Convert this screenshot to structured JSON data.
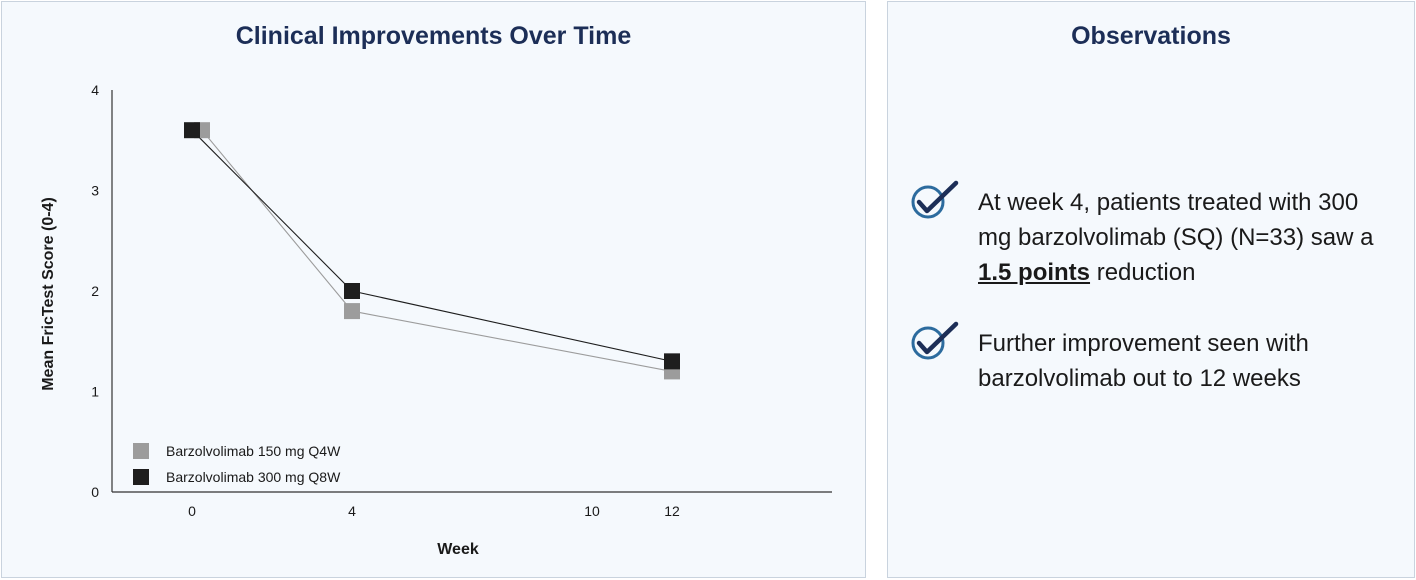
{
  "chart_data": {
    "type": "line",
    "title": "Clinical Improvements Over Time",
    "xlabel": "Week",
    "ylabel": "Mean FricTest Score (0-4)",
    "x_ticks": [
      0,
      4,
      10,
      12
    ],
    "y_ticks": [
      0,
      1,
      2,
      3,
      4
    ],
    "xlim": [
      -2,
      16
    ],
    "ylim": [
      0,
      4
    ],
    "grid": false,
    "legend_position": "bottom-left",
    "series": [
      {
        "name": "Barzolvolimab 150 mg Q4W",
        "color": "#9c9c9c",
        "points": [
          {
            "x": 0,
            "y": 3.6
          },
          {
            "x": 4,
            "y": 1.8
          },
          {
            "x": 12,
            "y": 1.2
          }
        ]
      },
      {
        "name": "Barzolvolimab 300 mg Q8W",
        "color": "#1e1e1e",
        "points": [
          {
            "x": 0,
            "y": 3.6
          },
          {
            "x": 4,
            "y": 2.0
          },
          {
            "x": 12,
            "y": 1.3
          }
        ]
      }
    ]
  },
  "observations": {
    "title": "Observations",
    "accent_color": "#2c6b9e",
    "items": [
      {
        "icon": "check-circle-icon",
        "pre": "At week 4, patients treated with 300 mg barzolvolimab (SQ) (N=33) saw a ",
        "bold": "1.5 points",
        "post": " reduction"
      },
      {
        "icon": "check-circle-icon",
        "pre": "Further improvement seen with barzolvolimab out to 12 weeks",
        "bold": "",
        "post": ""
      }
    ]
  }
}
